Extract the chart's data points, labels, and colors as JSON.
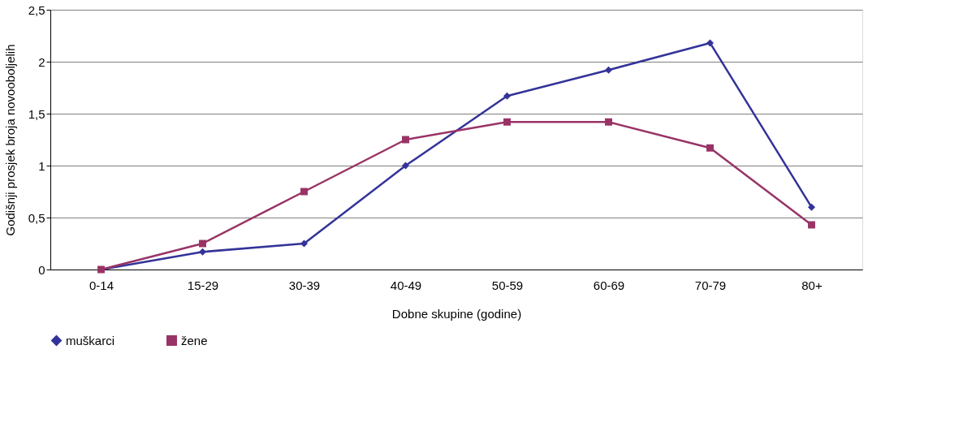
{
  "chart_data": {
    "type": "line",
    "xlabel": "Dobne skupine (godine)",
    "ylabel": "Godišnji prosjek broja novooboljelih",
    "categories": [
      "0-14",
      "15-29",
      "30-39",
      "40-49",
      "50-59",
      "60-69",
      "70-79",
      "80+"
    ],
    "series": [
      {
        "name": "muškarci",
        "color": "#333399",
        "marker": "diamond",
        "values": [
          0,
          0.17,
          0.25,
          1.0,
          1.67,
          1.92,
          2.18,
          0.6
        ]
      },
      {
        "name": "žene",
        "color": "#993366",
        "marker": "square",
        "values": [
          0,
          0.25,
          0.75,
          1.25,
          1.42,
          1.42,
          1.17,
          0.43
        ]
      }
    ],
    "ylim": [
      0,
      2.5
    ],
    "yticks": [
      0,
      {
        "value": 0.5,
        "label": "0,5"
      },
      1,
      {
        "value": 1.5,
        "label": "1,5"
      },
      2,
      {
        "value": 2.5,
        "label": "2,5"
      }
    ],
    "grid": "y",
    "legend": "bottom",
    "line_style": "solid"
  }
}
